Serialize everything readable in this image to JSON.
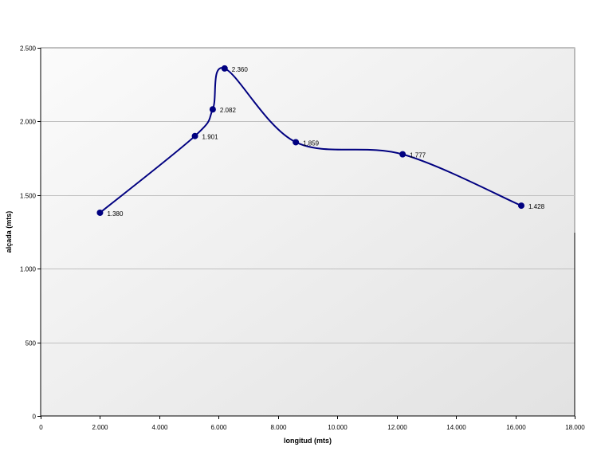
{
  "chart_data": {
    "type": "line",
    "smooth": true,
    "xlabel": "longitud (mts)",
    "ylabel": "alçada (mts)",
    "xlim": [
      0,
      18000
    ],
    "ylim": [
      0,
      2500
    ],
    "x_ticks": [
      0,
      2000,
      4000,
      6000,
      8000,
      10000,
      12000,
      14000,
      16000,
      18000
    ],
    "x_tick_labels": [
      "0",
      "2.000",
      "4.000",
      "6.000",
      "8.000",
      "10.000",
      "12.000",
      "14.000",
      "16.000",
      "18.000"
    ],
    "y_ticks": [
      0,
      500,
      1000,
      1500,
      2000,
      2500
    ],
    "y_tick_labels": [
      "0",
      "500",
      "1.000",
      "1.500",
      "2.000",
      "2.500"
    ],
    "grid": {
      "horizontal": true,
      "vertical": false
    },
    "legend": "none",
    "series": [
      {
        "color": "#000080",
        "x": [
          2000,
          5200,
          5800,
          6200,
          8600,
          12200,
          16200
        ],
        "y": [
          1380,
          1901,
          2082,
          2360,
          1859,
          1777,
          1428
        ],
        "labels": [
          "1.380",
          "1.901",
          "2.082",
          "2.360",
          "1.859",
          "1.777",
          "1.428"
        ]
      }
    ],
    "colors": {
      "line": "#000080",
      "marker": "#000080",
      "gridline": "#c0c0c0",
      "plot_background_top": "#fbfbfb",
      "plot_background_bottom": "#e2e2e2"
    }
  }
}
